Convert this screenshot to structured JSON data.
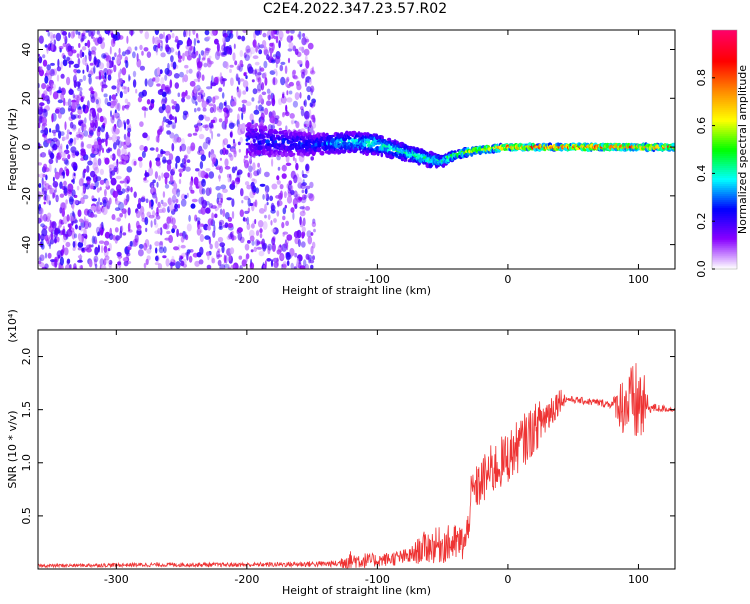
{
  "title": "C2E4.2022.347.23.57.R02",
  "chart_data": [
    {
      "type": "heatmap",
      "title": "C2E4.2022.347.23.57.R02",
      "xlabel": "Height of straight line (km)",
      "ylabel": "Frequency (Hz)",
      "xlim": [
        -360,
        128
      ],
      "ylim": [
        -50,
        48
      ],
      "x_ticks": [
        "-300",
        "-200",
        "-100",
        "0",
        "100"
      ],
      "x_tick_values": [
        -300,
        -200,
        -100,
        0,
        100
      ],
      "y_ticks": [
        "-40",
        "-20",
        "0",
        "20",
        "40"
      ],
      "y_tick_values": [
        -40,
        -20,
        0,
        20,
        40
      ],
      "colorbar": {
        "label": "Normalized spectral amplitude",
        "range": [
          0,
          1
        ],
        "ticks": [
          "0.0",
          "0.2",
          "0.4",
          "0.6",
          "0.8"
        ],
        "tick_values": [
          0,
          0.2,
          0.4,
          0.6,
          0.8
        ],
        "colormap": [
          "#ffffff",
          "#8800ff",
          "#0000ff",
          "#00ffff",
          "#00ff00",
          "#ffff00",
          "#ff8800",
          "#ff0000",
          "#ff0066"
        ]
      },
      "noise_region": {
        "x_range": [
          -360,
          -148
        ],
        "y_range": [
          -50,
          48
        ],
        "amplitude": 0.12
      },
      "spectral_line": [
        {
          "x": -200,
          "f": 3,
          "spread": 7,
          "amp": 0.25
        },
        {
          "x": -150,
          "f": 1,
          "spread": 4,
          "amp": 0.3
        },
        {
          "x": -120,
          "f": 2,
          "spread": 4,
          "amp": 0.4
        },
        {
          "x": -100,
          "f": 1,
          "spread": 4,
          "amp": 0.45
        },
        {
          "x": -80,
          "f": -2,
          "spread": 3,
          "amp": 0.45
        },
        {
          "x": -60,
          "f": -5,
          "spread": 3,
          "amp": 0.45
        },
        {
          "x": -50,
          "f": -6,
          "spread": 2,
          "amp": 0.45
        },
        {
          "x": -40,
          "f": -3,
          "spread": 1.5,
          "amp": 0.6
        },
        {
          "x": -20,
          "f": -1,
          "spread": 1.2,
          "amp": 0.7
        },
        {
          "x": 0,
          "f": 0,
          "spread": 1,
          "amp": 0.85
        },
        {
          "x": 40,
          "f": 0,
          "spread": 1,
          "amp": 0.88
        },
        {
          "x": 80,
          "f": 0,
          "spread": 1,
          "amp": 0.88
        },
        {
          "x": 100,
          "f": 0,
          "spread": 1,
          "amp": 0.85
        },
        {
          "x": 128,
          "f": 0,
          "spread": 1,
          "amp": 0.85
        }
      ]
    },
    {
      "type": "line",
      "xlabel": "Height of straight line (km)",
      "ylabel": "SNR (10 * v/v)",
      "y_multiplier": "(x10⁴)",
      "xlim": [
        -360,
        128
      ],
      "ylim": [
        0,
        2.25
      ],
      "x_ticks": [
        "-300",
        "-200",
        "-100",
        "0",
        "100"
      ],
      "x_tick_values": [
        -300,
        -200,
        -100,
        0,
        100
      ],
      "y_ticks": [
        "0.5",
        "1.0",
        "1.5",
        "2.0"
      ],
      "y_tick_values": [
        0.5,
        1.0,
        1.5,
        2.0
      ],
      "color": "#ee3333",
      "envelope": [
        {
          "x": -360,
          "base": 0.03,
          "noise": 0.015
        },
        {
          "x": -280,
          "base": 0.04,
          "noise": 0.02
        },
        {
          "x": -200,
          "base": 0.04,
          "noise": 0.02
        },
        {
          "x": -130,
          "base": 0.05,
          "noise": 0.03
        },
        {
          "x": -125,
          "base": 0.08,
          "noise": 0.1
        },
        {
          "x": -100,
          "base": 0.08,
          "noise": 0.06
        },
        {
          "x": -75,
          "base": 0.12,
          "noise": 0.08
        },
        {
          "x": -65,
          "base": 0.2,
          "noise": 0.15
        },
        {
          "x": -50,
          "base": 0.23,
          "noise": 0.18
        },
        {
          "x": -32,
          "base": 0.25,
          "noise": 0.18
        },
        {
          "x": -28,
          "base": 0.7,
          "noise": 0.2
        },
        {
          "x": -15,
          "base": 0.9,
          "noise": 0.25
        },
        {
          "x": 0,
          "base": 1.05,
          "noise": 0.25
        },
        {
          "x": 15,
          "base": 1.25,
          "noise": 0.25
        },
        {
          "x": 30,
          "base": 1.45,
          "noise": 0.2
        },
        {
          "x": 40,
          "base": 1.6,
          "noise": 0.12
        },
        {
          "x": 45,
          "base": 1.6,
          "noise": 0.03
        },
        {
          "x": 80,
          "base": 1.55,
          "noise": 0.04
        },
        {
          "x": 88,
          "base": 1.55,
          "noise": 0.3
        },
        {
          "x": 102,
          "base": 1.55,
          "noise": 0.45
        },
        {
          "x": 108,
          "base": 1.52,
          "noise": 0.05
        },
        {
          "x": 128,
          "base": 1.5,
          "noise": 0.02
        }
      ]
    }
  ]
}
